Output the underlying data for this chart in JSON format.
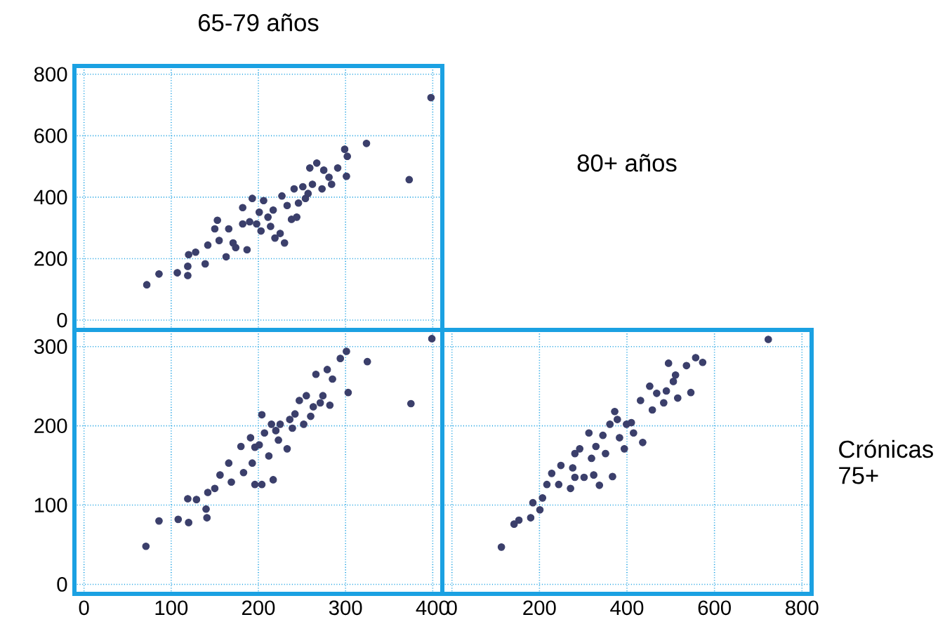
{
  "chart_data": [
    {
      "type": "scatter",
      "title": "65-79 años",
      "xlim": [
        -11,
        411
      ],
      "ylim": [
        -32,
        827
      ],
      "xticks": [
        0,
        100,
        200,
        300,
        400
      ],
      "yticks": [
        0,
        200,
        400,
        600,
        800
      ],
      "grid": true,
      "marker": "circle",
      "tick_labels": "y",
      "series": [
        {
          "color": "#3b3f6b",
          "x": [
            72,
            86,
            107,
            119,
            119,
            120,
            128,
            142,
            139,
            150,
            153,
            163,
            166,
            171,
            182,
            187,
            190,
            193,
            201,
            203,
            206,
            211,
            217,
            219,
            225,
            227,
            233,
            238,
            241,
            246,
            251,
            254,
            259,
            262,
            267,
            273,
            275,
            281,
            284,
            291,
            299,
            302,
            301,
            324,
            373,
            398,
            182,
            198,
            214,
            174,
            155,
            230,
            244,
            257
          ],
          "values": [
            115,
            150,
            154,
            145,
            175,
            213,
            221,
            244,
            183,
            297,
            325,
            206,
            297,
            251,
            366,
            229,
            320,
            396,
            351,
            290,
            389,
            335,
            358,
            267,
            282,
            404,
            373,
            328,
            427,
            381,
            434,
            396,
            495,
            442,
            511,
            427,
            488,
            465,
            442,
            495,
            556,
            533,
            468,
            575,
            457,
            724,
            313,
            313,
            305,
            236,
            259,
            251,
            335,
            412
          ]
        }
      ]
    },
    {
      "type": "scatter",
      "xlim": [
        -11,
        411
      ],
      "ylim": [
        -12,
        321
      ],
      "xticks": [
        0,
        100,
        200,
        300,
        400
      ],
      "yticks": [
        0,
        100,
        200,
        300
      ],
      "grid": true,
      "marker": "circle",
      "series": [
        {
          "color": "#3b3f6b",
          "x": [
            71,
            86,
            108,
            119,
            120,
            129,
            140,
            141,
            142,
            150,
            156,
            166,
            169,
            180,
            183,
            191,
            193,
            196,
            201,
            204,
            207,
            212,
            215,
            217,
            223,
            225,
            233,
            236,
            239,
            242,
            247,
            252,
            255,
            260,
            263,
            266,
            271,
            274,
            282,
            285,
            279,
            294,
            301,
            303,
            325,
            375,
            399,
            204,
            220,
            196
          ],
          "values": [
            48,
            80,
            82,
            108,
            78,
            107,
            95,
            84,
            116,
            121,
            138,
            153,
            129,
            174,
            141,
            185,
            153,
            126,
            176,
            126,
            191,
            162,
            202,
            132,
            182,
            202,
            171,
            208,
            197,
            215,
            232,
            202,
            238,
            212,
            224,
            265,
            229,
            238,
            226,
            259,
            271,
            285,
            294,
            242,
            281,
            228,
            310,
            214,
            194,
            173
          ]
        }
      ]
    },
    {
      "type": "scatter",
      "title": "80+ años",
      "y2label": "Crónicas 75+",
      "xlim": [
        -22,
        822
      ],
      "ylim": [
        -12,
        321
      ],
      "xticks": [
        0,
        200,
        400,
        600,
        800
      ],
      "yticks": [
        0,
        100,
        200,
        300
      ],
      "grid": true,
      "marker": "circle",
      "tick_labels": "x",
      "series": [
        {
          "color": "#3b3f6b",
          "x": [
            113,
            142,
            153,
            180,
            185,
            201,
            207,
            217,
            228,
            244,
            249,
            271,
            276,
            281,
            292,
            302,
            313,
            324,
            329,
            337,
            345,
            351,
            361,
            367,
            372,
            383,
            394,
            399,
            410,
            415,
            431,
            436,
            452,
            458,
            468,
            484,
            490,
            495,
            506,
            511,
            516,
            536,
            546,
            557,
            573,
            723,
            319,
            378,
            281
          ],
          "values": [
            47,
            76,
            81,
            84,
            103,
            94,
            109,
            126,
            140,
            126,
            150,
            121,
            147,
            165,
            171,
            135,
            191,
            138,
            174,
            125,
            188,
            165,
            202,
            136,
            218,
            185,
            171,
            202,
            204,
            191,
            232,
            179,
            250,
            220,
            241,
            229,
            244,
            279,
            256,
            264,
            235,
            276,
            242,
            286,
            280,
            309,
            159,
            208,
            135
          ]
        }
      ]
    }
  ]
}
